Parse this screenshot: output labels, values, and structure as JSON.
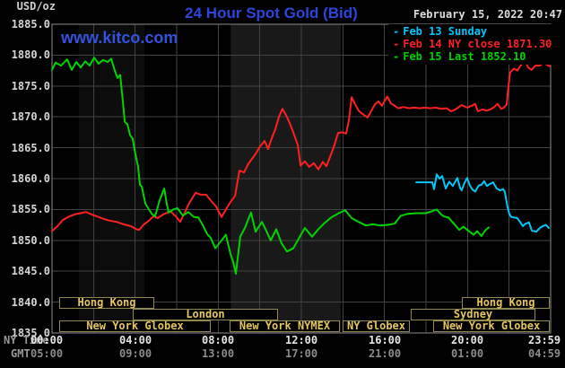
{
  "header": {
    "units_label": "USD/oz",
    "title": "24 Hour Spot Gold (Bid)",
    "datetime": "February 15, 2022 20:47",
    "watermark": "www.kitco.com"
  },
  "legend": {
    "items": [
      {
        "dash": "-",
        "label": "Feb 13 Sunday",
        "color": "#00c8f8"
      },
      {
        "dash": "-",
        "label": "Feb 14 NY close 1871.30",
        "color": "#ff2020"
      },
      {
        "dash": "-",
        "label": "Feb 15 Last 1852.10",
        "color": "#00d400"
      }
    ]
  },
  "axes": {
    "y_ticks": [
      "1885.0",
      "1880.0",
      "1875.0",
      "1870.0",
      "1865.0",
      "1860.0",
      "1855.0",
      "1850.0",
      "1845.0",
      "1840.0",
      "1835.0"
    ],
    "x_rows": [
      {
        "label": "NY Time",
        "ticks": [
          "00:00",
          "04:00",
          "08:00",
          "12:00",
          "16:00",
          "20:00",
          "23:59"
        ],
        "tick_color": "#e4e4e4"
      },
      {
        "label": "GMT",
        "ticks": [
          "05:00",
          "09:00",
          "13:00",
          "17:00",
          "21:00",
          "01:00",
          "04:59"
        ],
        "tick_color": "#8c8c8c"
      }
    ]
  },
  "sessions": {
    "border_color": "#8f894e",
    "text_color": "#e6c65f",
    "rows": [
      [
        {
          "label": "Hong Kong",
          "start": 0.35,
          "end": 4.83
        },
        {
          "label": "Hong Kong",
          "start": 19.72,
          "end": 23.87
        }
      ],
      [
        {
          "label": "London",
          "start": 3.88,
          "end": 10.79
        },
        {
          "label": "Sydney",
          "start": 17.27,
          "end": 23.18
        }
      ],
      [
        {
          "label": "New York Globex",
          "start": 0.35,
          "end": 7.55
        },
        {
          "label": "New York NYMEX",
          "start": 8.55,
          "end": 13.77
        },
        {
          "label": "NY Globex",
          "start": 13.98,
          "end": 17.14
        },
        {
          "label": "New York Globex",
          "start": 18.34,
          "end": 23.87
        }
      ]
    ]
  },
  "chart_data": {
    "type": "line",
    "title": "24 Hour Spot Gold (Bid)",
    "ylabel": "USD/oz",
    "ylim": [
      1835,
      1885
    ],
    "xlim_hours": [
      0,
      24
    ],
    "y_tick_step": 5,
    "x_gridline_step_hours": 2,
    "grid": true,
    "legend_position": "top-right",
    "grid_color": "#434343",
    "border_color": "#8c8c8c",
    "shaded_bands_hours": [
      {
        "start": 1.29,
        "end": 4.45,
        "color": "#0c0c0c"
      },
      {
        "start": 8.6,
        "end": 13.9,
        "color": "#191919"
      }
    ],
    "series": [
      {
        "name": "Feb 13 Sunday",
        "color": "#00c8f8",
        "points": [
          [
            17.53,
            1859.4
          ],
          [
            18.3,
            1859.4
          ],
          [
            18.39,
            1858.3
          ],
          [
            18.52,
            1860.7
          ],
          [
            18.65,
            1860
          ],
          [
            18.78,
            1860.4
          ],
          [
            18.95,
            1858.4
          ],
          [
            19.12,
            1859.5
          ],
          [
            19.29,
            1858.8
          ],
          [
            19.51,
            1860.1
          ],
          [
            19.64,
            1858.5
          ],
          [
            19.72,
            1858.1
          ],
          [
            19.85,
            1859.3
          ],
          [
            19.98,
            1860.1
          ],
          [
            20.11,
            1858.9
          ],
          [
            20.24,
            1858.2
          ],
          [
            20.37,
            1857.9
          ],
          [
            20.54,
            1858.9
          ],
          [
            20.67,
            1859
          ],
          [
            20.8,
            1859.6
          ],
          [
            20.93,
            1858.8
          ],
          [
            21.06,
            1859.1
          ],
          [
            21.23,
            1859.4
          ],
          [
            21.4,
            1858.4
          ],
          [
            21.58,
            1858.1
          ],
          [
            21.71,
            1858.3
          ],
          [
            21.79,
            1857.9
          ],
          [
            21.92,
            1855.5
          ],
          [
            22.01,
            1854.3
          ],
          [
            22.1,
            1853.8
          ],
          [
            22.23,
            1853.7
          ],
          [
            22.4,
            1853.6
          ],
          [
            22.53,
            1853
          ],
          [
            22.66,
            1852.3
          ],
          [
            22.79,
            1852.7
          ],
          [
            22.96,
            1852.9
          ],
          [
            23.09,
            1851.6
          ],
          [
            23.31,
            1851.4
          ],
          [
            23.48,
            1852
          ],
          [
            23.61,
            1852.3
          ],
          [
            23.78,
            1852.5
          ],
          [
            23.91,
            1852
          ]
        ]
      },
      {
        "name": "Feb 14 NY close 1871.30",
        "color": "#ff2020",
        "points": [
          [
            0,
            1851.5
          ],
          [
            0.26,
            1852.3
          ],
          [
            0.52,
            1853.3
          ],
          [
            0.78,
            1853.8
          ],
          [
            1.08,
            1854.2
          ],
          [
            1.38,
            1854.4
          ],
          [
            1.64,
            1854.6
          ],
          [
            1.9,
            1854.2
          ],
          [
            2.16,
            1853.9
          ],
          [
            2.46,
            1853.5
          ],
          [
            2.76,
            1853.2
          ],
          [
            3.11,
            1853
          ],
          [
            3.45,
            1852.6
          ],
          [
            3.8,
            1852.3
          ],
          [
            4.06,
            1851.8
          ],
          [
            4.19,
            1851.7
          ],
          [
            4.4,
            1852.5
          ],
          [
            4.66,
            1853.2
          ],
          [
            4.88,
            1853.9
          ],
          [
            5.09,
            1853.6
          ],
          [
            5.35,
            1854.2
          ],
          [
            5.7,
            1854.7
          ],
          [
            5.96,
            1853.9
          ],
          [
            6.17,
            1853
          ],
          [
            6.39,
            1854.5
          ],
          [
            6.6,
            1856
          ],
          [
            6.91,
            1857.7
          ],
          [
            7.16,
            1857.4
          ],
          [
            7.42,
            1857.4
          ],
          [
            7.68,
            1856.3
          ],
          [
            7.9,
            1855.5
          ],
          [
            8.16,
            1853.8
          ],
          [
            8.37,
            1855
          ],
          [
            8.59,
            1856.2
          ],
          [
            8.81,
            1857.2
          ],
          [
            9.02,
            1861.3
          ],
          [
            9.24,
            1861
          ],
          [
            9.45,
            1862.4
          ],
          [
            9.58,
            1863
          ],
          [
            9.8,
            1864
          ],
          [
            10.01,
            1865.2
          ],
          [
            10.23,
            1866.1
          ],
          [
            10.4,
            1864.8
          ],
          [
            10.57,
            1866.5
          ],
          [
            10.75,
            1868
          ],
          [
            10.92,
            1870
          ],
          [
            11.09,
            1871.3
          ],
          [
            11.26,
            1870.3
          ],
          [
            11.44,
            1869
          ],
          [
            11.61,
            1867.5
          ],
          [
            11.83,
            1865.4
          ],
          [
            11.96,
            1862.1
          ],
          [
            12.17,
            1862.8
          ],
          [
            12.38,
            1861.9
          ],
          [
            12.6,
            1862.5
          ],
          [
            12.82,
            1861.5
          ],
          [
            13.03,
            1862.7
          ],
          [
            13.21,
            1862
          ],
          [
            13.38,
            1863.5
          ],
          [
            13.55,
            1865
          ],
          [
            13.77,
            1867.4
          ],
          [
            13.98,
            1867.5
          ],
          [
            14.16,
            1867.3
          ],
          [
            14.29,
            1869.5
          ],
          [
            14.42,
            1873.2
          ],
          [
            14.59,
            1872
          ],
          [
            14.76,
            1871
          ],
          [
            14.89,
            1870.6
          ],
          [
            15.06,
            1870.2
          ],
          [
            15.19,
            1869.9
          ],
          [
            15.37,
            1871
          ],
          [
            15.54,
            1872
          ],
          [
            15.71,
            1872.5
          ],
          [
            15.88,
            1871.8
          ],
          [
            16.01,
            1872.6
          ],
          [
            16.14,
            1873.3
          ],
          [
            16.31,
            1872.2
          ],
          [
            16.49,
            1871.8
          ],
          [
            16.66,
            1871.4
          ],
          [
            16.92,
            1871.6
          ],
          [
            17.18,
            1871.4
          ],
          [
            17.44,
            1871.5
          ],
          [
            17.7,
            1871.4
          ],
          [
            17.95,
            1871.5
          ],
          [
            18.21,
            1871.4
          ],
          [
            18.47,
            1871.5
          ],
          [
            18.73,
            1871.3
          ],
          [
            18.99,
            1871.4
          ],
          [
            19.21,
            1870.9
          ],
          [
            19.42,
            1871.2
          ],
          [
            19.72,
            1871.9
          ],
          [
            19.98,
            1871.5
          ],
          [
            20.2,
            1871.8
          ],
          [
            20.37,
            1872.1
          ],
          [
            20.5,
            1870.9
          ],
          [
            20.72,
            1871.2
          ],
          [
            20.93,
            1871
          ],
          [
            21.15,
            1871.3
          ],
          [
            21.32,
            1871.7
          ],
          [
            21.45,
            1872.1
          ],
          [
            21.62,
            1871.3
          ],
          [
            21.75,
            1871.5
          ],
          [
            21.88,
            1872
          ],
          [
            21.97,
            1875
          ],
          [
            22.05,
            1877.2
          ],
          [
            22.23,
            1877.8
          ],
          [
            22.4,
            1877.5
          ],
          [
            22.57,
            1878.4
          ],
          [
            22.74,
            1879.3
          ],
          [
            22.92,
            1878
          ],
          [
            23.09,
            1877.6
          ],
          [
            23.26,
            1878.3
          ],
          [
            23.48,
            1878.3
          ],
          [
            23.65,
            1878.8
          ],
          [
            23.83,
            1878.4
          ],
          [
            23.96,
            1878.2
          ]
        ]
      },
      {
        "name": "Feb 15 Last 1852.10",
        "color": "#00d400",
        "points": [
          [
            0,
            1877.6
          ],
          [
            0.17,
            1878.8
          ],
          [
            0.43,
            1878.3
          ],
          [
            0.73,
            1879.3
          ],
          [
            0.95,
            1877.6
          ],
          [
            1.17,
            1878.9
          ],
          [
            1.38,
            1878
          ],
          [
            1.6,
            1879
          ],
          [
            1.81,
            1878.3
          ],
          [
            2.03,
            1879.6
          ],
          [
            2.24,
            1878.6
          ],
          [
            2.46,
            1879.2
          ],
          [
            2.68,
            1878.9
          ],
          [
            2.85,
            1879.4
          ],
          [
            3.02,
            1877.5
          ],
          [
            3.15,
            1876.3
          ],
          [
            3.28,
            1876.8
          ],
          [
            3.41,
            1872.5
          ],
          [
            3.5,
            1869.2
          ],
          [
            3.63,
            1868.8
          ],
          [
            3.76,
            1867
          ],
          [
            3.88,
            1866.5
          ],
          [
            4.01,
            1864
          ],
          [
            4.14,
            1862
          ],
          [
            4.23,
            1859
          ],
          [
            4.32,
            1858.7
          ],
          [
            4.49,
            1856
          ],
          [
            4.66,
            1855
          ],
          [
            4.83,
            1854.2
          ],
          [
            4.96,
            1853.9
          ],
          [
            5.18,
            1856.5
          ],
          [
            5.4,
            1858.4
          ],
          [
            5.52,
            1856
          ],
          [
            5.61,
            1854.5
          ],
          [
            5.83,
            1855
          ],
          [
            6.04,
            1855.2
          ],
          [
            6.3,
            1854
          ],
          [
            6.56,
            1854.6
          ],
          [
            6.82,
            1853.8
          ],
          [
            7.04,
            1853.7
          ],
          [
            7.25,
            1852.5
          ],
          [
            7.47,
            1851
          ],
          [
            7.64,
            1850.4
          ],
          [
            7.86,
            1848.7
          ],
          [
            8.11,
            1849.8
          ],
          [
            8.37,
            1850.9
          ],
          [
            8.59,
            1847.8
          ],
          [
            8.72,
            1846.5
          ],
          [
            8.85,
            1844.6
          ],
          [
            9.06,
            1850.6
          ],
          [
            9.28,
            1852
          ],
          [
            9.58,
            1854.5
          ],
          [
            9.8,
            1851.4
          ],
          [
            10.1,
            1853
          ],
          [
            10.32,
            1851.5
          ],
          [
            10.53,
            1850
          ],
          [
            10.79,
            1851.8
          ],
          [
            11.05,
            1849.5
          ],
          [
            11.31,
            1848.2
          ],
          [
            11.61,
            1848.7
          ],
          [
            11.91,
            1850.5
          ],
          [
            12.17,
            1852
          ],
          [
            12.52,
            1850.6
          ],
          [
            12.82,
            1851.8
          ],
          [
            13.12,
            1852.8
          ],
          [
            13.47,
            1853.8
          ],
          [
            13.81,
            1854.4
          ],
          [
            14.11,
            1854.9
          ],
          [
            14.42,
            1853.6
          ],
          [
            14.76,
            1853
          ],
          [
            15.11,
            1852.4
          ],
          [
            15.45,
            1852.6
          ],
          [
            15.8,
            1852.4
          ],
          [
            16.14,
            1852.5
          ],
          [
            16.49,
            1852.7
          ],
          [
            16.79,
            1854
          ],
          [
            17.14,
            1854.3
          ],
          [
            17.57,
            1854.4
          ],
          [
            18,
            1854.4
          ],
          [
            18.35,
            1854.8
          ],
          [
            18.52,
            1855
          ],
          [
            18.73,
            1854.2
          ],
          [
            18.86,
            1853.9
          ],
          [
            19.08,
            1853.7
          ],
          [
            19.29,
            1852.9
          ],
          [
            19.6,
            1851.7
          ],
          [
            19.81,
            1852.2
          ],
          [
            20.03,
            1851.6
          ],
          [
            20.29,
            1850.9
          ],
          [
            20.46,
            1851.5
          ],
          [
            20.67,
            1850.7
          ],
          [
            20.85,
            1851.6
          ],
          [
            21.02,
            1852.1
          ]
        ]
      }
    ]
  }
}
